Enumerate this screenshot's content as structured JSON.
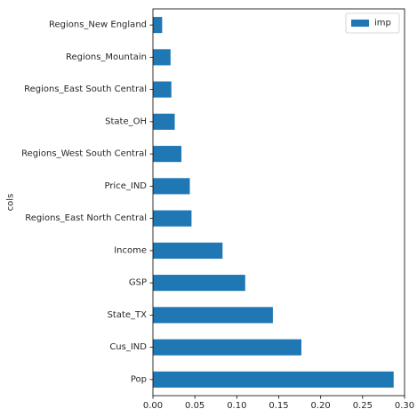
{
  "chart_data": {
    "type": "bar",
    "orientation": "horizontal",
    "categories": [
      "Pop",
      "Cus_IND",
      "State_TX",
      "GSP",
      "Income",
      "Regions_East North Central",
      "Price_IND",
      "Regions_West South Central",
      "State_OH",
      "Regions_East South Central",
      "Regions_Mountain",
      "Regions_New England"
    ],
    "series": [
      {
        "name": "imp",
        "color": "#1f77b4",
        "values": [
          0.287,
          0.177,
          0.143,
          0.11,
          0.083,
          0.046,
          0.044,
          0.034,
          0.026,
          0.022,
          0.021,
          0.011
        ]
      }
    ],
    "title": "",
    "xlabel": "",
    "ylabel": "cols",
    "xlim": [
      0,
      0.3
    ],
    "xticks": [
      "0.00",
      "0.05",
      "0.10",
      "0.15",
      "0.20",
      "0.25",
      "0.30"
    ],
    "grid": false,
    "legend": "top-right"
  }
}
